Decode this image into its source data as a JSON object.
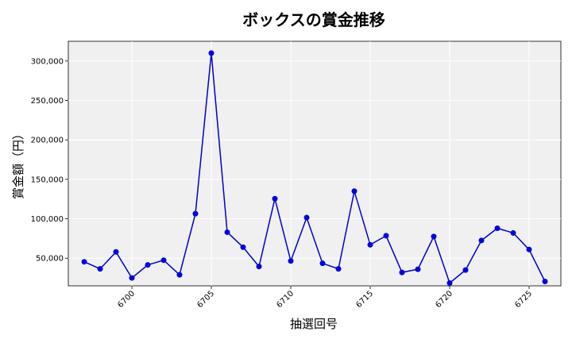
{
  "chart_data": {
    "type": "line",
    "title": "ボックスの賞金推移",
    "xlabel": "抽選回号",
    "ylabel": "賞金額（円）",
    "xlim": [
      6696,
      6727
    ],
    "ylim": [
      15000,
      325000
    ],
    "xticks": [
      6700,
      6705,
      6710,
      6715,
      6720,
      6725
    ],
    "yticks": [
      50000,
      100000,
      150000,
      200000,
      250000,
      300000
    ],
    "xtick_labels": [
      "6700",
      "6705",
      "6710",
      "6715",
      "6720",
      "6725"
    ],
    "ytick_labels": [
      "50,000",
      "100,000",
      "150,000",
      "200,000",
      "250,000",
      "300,000"
    ],
    "grid": true,
    "color": "#0000dd",
    "x": [
      6697,
      6698,
      6699,
      6700,
      6701,
      6702,
      6703,
      6704,
      6705,
      6706,
      6707,
      6708,
      6709,
      6710,
      6711,
      6712,
      6713,
      6714,
      6715,
      6716,
      6717,
      6718,
      6719,
      6720,
      6721,
      6722,
      6723,
      6724,
      6725,
      6726
    ],
    "values": [
      45500,
      36500,
      58000,
      25000,
      41500,
      47500,
      29000,
      106500,
      310000,
      83000,
      64000,
      39500,
      125500,
      46500,
      101500,
      43500,
      36500,
      135000,
      67000,
      78500,
      32000,
      36000,
      77500,
      18500,
      35000,
      72500,
      88000,
      82000,
      61000,
      20500
    ]
  }
}
